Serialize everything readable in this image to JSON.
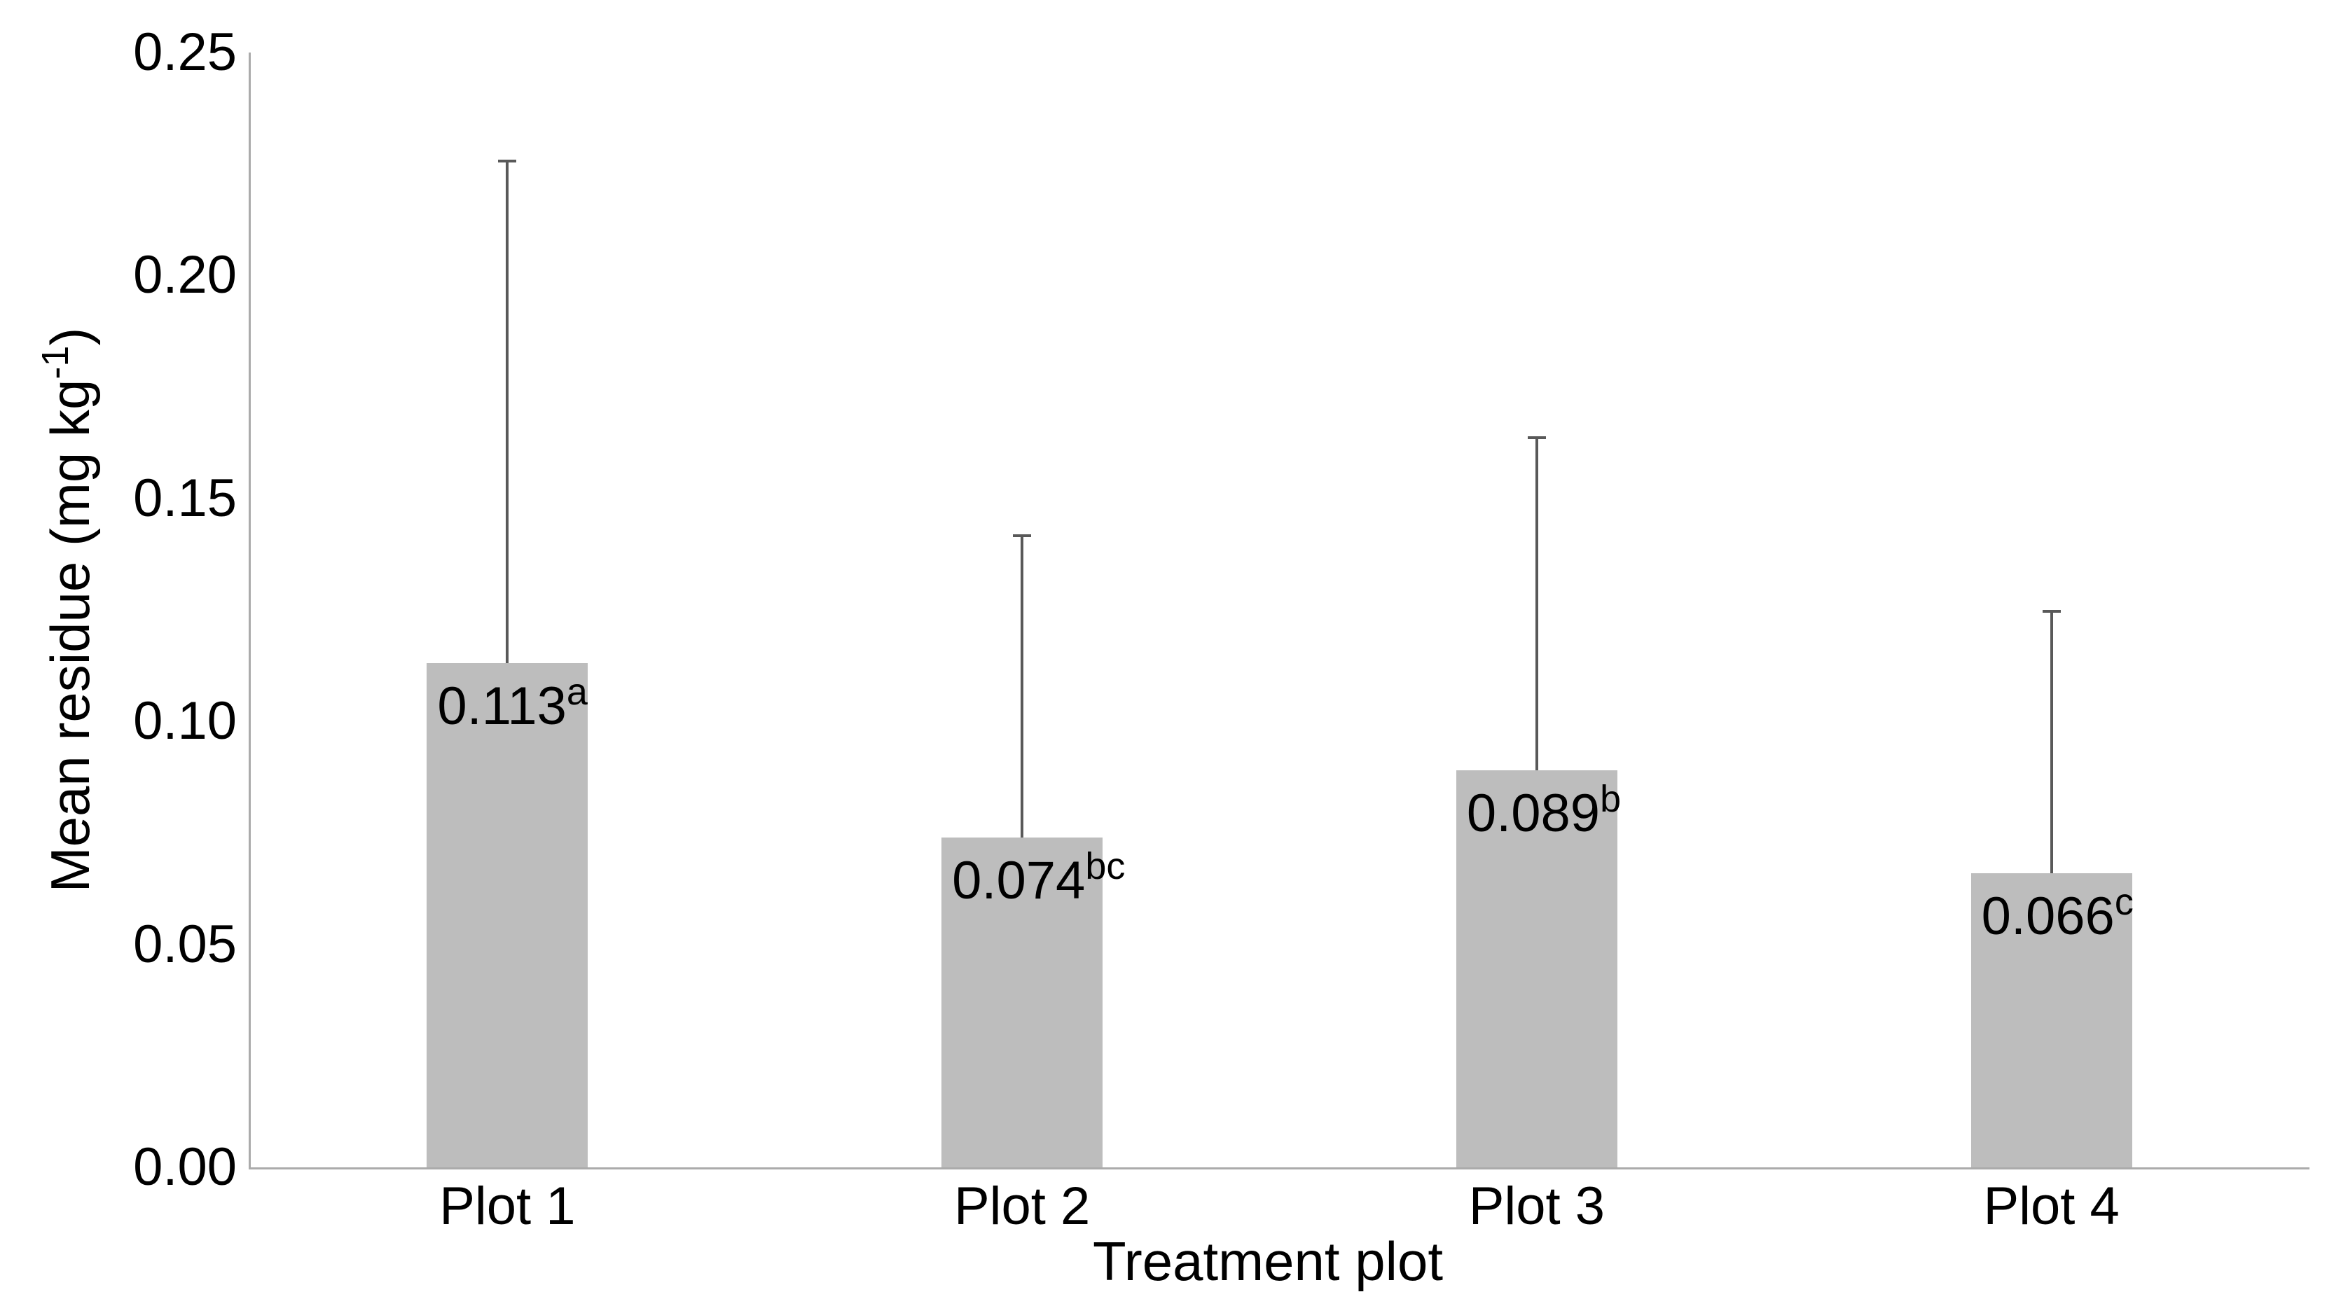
{
  "chart_data": {
    "type": "bar",
    "title": "",
    "xlabel": "Treatment plot",
    "ylabel": "Mean residue (mg kg⁻¹)",
    "ylabel_parts": {
      "prefix": "Mean residue (mg kg",
      "superscript": "-1",
      "suffix": ")"
    },
    "categories": [
      "Plot 1",
      "Plot 2",
      "Plot 3",
      "Plot 4"
    ],
    "values": [
      0.113,
      0.074,
      0.089,
      0.066
    ],
    "value_labels": [
      "0.113",
      "0.074",
      "0.089",
      "0.066"
    ],
    "significance_letters": [
      "a",
      "bc",
      "b",
      "c"
    ],
    "error_bar_tops": [
      0.226,
      0.142,
      0.164,
      0.125
    ],
    "ylim": [
      0,
      0.25
    ],
    "yticks": [
      0,
      0.05,
      0.1,
      0.15,
      0.2,
      0.25
    ],
    "ytick_labels": [
      "0.00",
      "0.05",
      "0.10",
      "0.15",
      "0.20",
      "0.25"
    ],
    "bar_color": "#bdbdbd",
    "error_bar_color": "#595959",
    "axis_color": "#ababab",
    "grid": false,
    "legend": false
  }
}
